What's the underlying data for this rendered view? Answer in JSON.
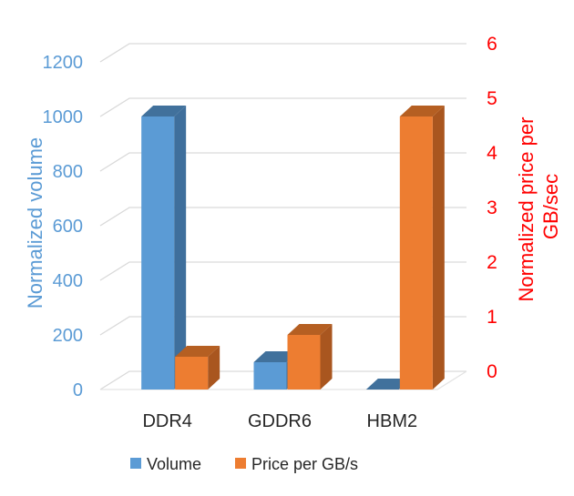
{
  "chart_data": {
    "type": "bar",
    "categories": [
      "DDR4",
      "GDDR6",
      "HBM2"
    ],
    "series": [
      {
        "name": "Volume",
        "axis": "left",
        "values": [
          1000,
          100,
          0
        ],
        "color": "#5B9BD5",
        "side_color": "#3F6F9C",
        "top_color": "#41719C"
      },
      {
        "name": "Price per GB/s",
        "axis": "right",
        "values": [
          0.6,
          1.0,
          5.0
        ],
        "color": "#ED7D31",
        "side_color": "#A9561F",
        "top_color": "#B55F22"
      }
    ],
    "left_axis": {
      "label": "Normalized volume",
      "ylim": [
        0,
        1200
      ],
      "ticks": [
        "0",
        "200",
        "400",
        "600",
        "800",
        "1000",
        "1200"
      ],
      "color": "#5B9BD5"
    },
    "right_axis": {
      "label": [
        "Normalized price per",
        "GB/sec"
      ],
      "ylim": [
        0,
        6
      ],
      "ticks": [
        "0",
        "1",
        "2",
        "3",
        "4",
        "5",
        "6"
      ],
      "color": "#FF0000"
    },
    "grid": true,
    "legend": "bottom",
    "three_d": true
  }
}
